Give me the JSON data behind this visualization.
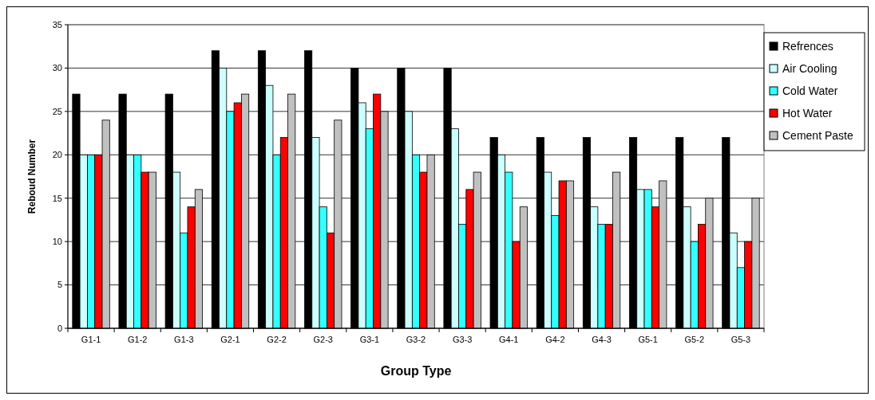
{
  "chart_data": {
    "type": "bar",
    "xlabel": "Group Type",
    "ylabel": "Reboud Number",
    "categories": [
      "G1-1",
      "G1-2",
      "G1-3",
      "G2-1",
      "G2-2",
      "G2-3",
      "G3-1",
      "G3-2",
      "G3-3",
      "G4-1",
      "G4-2",
      "G4-3",
      "G5-1",
      "G5-2",
      "G5-3"
    ],
    "series": [
      {
        "name": "Refrences",
        "color": "#000000",
        "values": [
          27,
          27,
          27,
          32,
          32,
          32,
          30,
          30,
          30,
          22,
          22,
          22,
          22,
          22,
          22
        ]
      },
      {
        "name": "Air Cooling",
        "color": "#ccffff",
        "values": [
          20,
          20,
          18,
          30,
          28,
          22,
          26,
          25,
          23,
          20,
          18,
          14,
          16,
          14,
          11
        ]
      },
      {
        "name": "Cold Water",
        "color": "#33ffff",
        "values": [
          20,
          20,
          11,
          25,
          20,
          14,
          23,
          20,
          12,
          18,
          13,
          12,
          16,
          10,
          7
        ]
      },
      {
        "name": "Hot Water",
        "color": "#ff0000",
        "values": [
          20,
          18,
          14,
          26,
          22,
          11,
          27,
          18,
          16,
          10,
          17,
          12,
          14,
          12,
          10
        ]
      },
      {
        "name": "Cement Paste",
        "color": "#c0c0c0",
        "values": [
          24,
          18,
          16,
          27,
          27,
          24,
          25,
          20,
          18,
          14,
          17,
          18,
          17,
          15,
          15
        ]
      }
    ],
    "ylim": [
      0,
      35
    ],
    "yticks": [
      0,
      5,
      10,
      15,
      20,
      25,
      30,
      35
    ],
    "grid": "y",
    "legend": "right"
  }
}
